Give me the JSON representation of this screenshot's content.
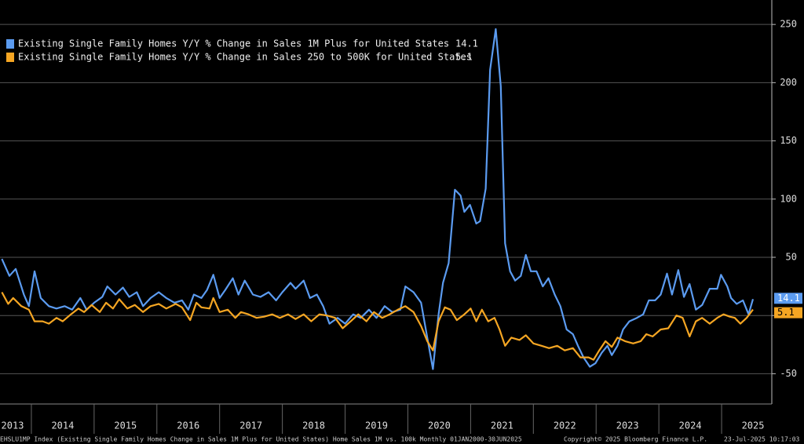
{
  "chart_data": {
    "type": "line",
    "series": [
      {
        "name": "Existing Single Family Homes Y/Y % Change in Sales 1M Plus for United States",
        "last_value_label": "14.1",
        "color": "#5b9bf0",
        "x": [
          2013.53,
          2013.65,
          2013.75,
          2013.88,
          2013.96,
          2014.05,
          2014.15,
          2014.28,
          2014.4,
          2014.53,
          2014.65,
          2014.78,
          2014.88,
          2015.0,
          2015.13,
          2015.21,
          2015.34,
          2015.46,
          2015.56,
          2015.68,
          2015.78,
          2015.9,
          2016.03,
          2016.15,
          2016.28,
          2016.4,
          2016.5,
          2016.59,
          2016.71,
          2016.8,
          2016.9,
          2017.0,
          2017.09,
          2017.21,
          2017.3,
          2017.4,
          2017.53,
          2017.65,
          2017.78,
          2017.9,
          2018.0,
          2018.13,
          2018.21,
          2018.34,
          2018.44,
          2018.55,
          2018.65,
          2018.75,
          2018.88,
          2019.0,
          2019.13,
          2019.25,
          2019.38,
          2019.5,
          2019.63,
          2019.75,
          2019.88,
          2019.96,
          2020.09,
          2020.21,
          2020.31,
          2020.4,
          2020.49,
          2020.56,
          2020.65,
          2020.75,
          2020.84,
          2020.9,
          2020.99,
          2021.09,
          2021.15,
          2021.24,
          2021.31,
          2021.4,
          2021.48,
          2021.55,
          2021.63,
          2021.71,
          2021.8,
          2021.88,
          2021.96,
          2022.05,
          2022.15,
          2022.24,
          2022.34,
          2022.43,
          2022.53,
          2022.63,
          2022.71,
          2022.8,
          2022.9,
          2022.99,
          2023.09,
          2023.18,
          2023.25,
          2023.34,
          2023.43,
          2023.53,
          2023.65,
          2023.75,
          2023.84,
          2023.94,
          2024.03,
          2024.13,
          2024.21,
          2024.31,
          2024.4,
          2024.49,
          2024.59,
          2024.69,
          2024.81,
          2024.93,
          2024.99,
          2025.09,
          2025.15,
          2025.24,
          2025.34,
          2025.43,
          2025.5
        ],
        "values": [
          48.6,
          34,
          40,
          18,
          8,
          38,
          15,
          8,
          6,
          8,
          5,
          15,
          5,
          11,
          16,
          25,
          18,
          24,
          16,
          20,
          8,
          15,
          20,
          15,
          11,
          13,
          5,
          18,
          15,
          22,
          35,
          15,
          22,
          32,
          18,
          30,
          18,
          16,
          20,
          13,
          20,
          28,
          23,
          30,
          15,
          18,
          8,
          -7,
          -2,
          -7,
          1,
          -2,
          5,
          -2,
          8,
          3,
          5,
          25,
          20,
          11,
          -19,
          -46,
          1,
          28,
          45,
          108,
          103,
          89,
          95,
          79,
          81,
          109,
          211,
          246,
          197,
          62,
          38,
          30,
          34,
          52,
          38,
          38,
          25,
          32,
          18,
          8,
          -12,
          -16,
          -26,
          -36,
          -44,
          -41,
          -32,
          -26,
          -34,
          -26,
          -12,
          -5,
          -2,
          1,
          13,
          13,
          18,
          36,
          18,
          39,
          16,
          27,
          5,
          9,
          23,
          23,
          35,
          25,
          15,
          10,
          13,
          1,
          14.1
        ]
      },
      {
        "name": "Existing Single Family Homes Y/Y % Change in Sales 250 to 500K for United States",
        "last_value_label": "5.1",
        "color": "#f5a623",
        "x": [
          2013.53,
          2013.63,
          2013.71,
          2013.84,
          2013.96,
          2014.05,
          2014.18,
          2014.28,
          2014.4,
          2014.5,
          2014.63,
          2014.75,
          2014.84,
          2014.96,
          2015.09,
          2015.19,
          2015.3,
          2015.4,
          2015.53,
          2015.65,
          2015.78,
          2015.9,
          2016.03,
          2016.15,
          2016.3,
          2016.4,
          2016.53,
          2016.63,
          2016.71,
          2016.84,
          2016.9,
          2017.0,
          2017.13,
          2017.25,
          2017.34,
          2017.46,
          2017.59,
          2017.71,
          2017.84,
          2017.96,
          2018.09,
          2018.21,
          2018.34,
          2018.46,
          2018.59,
          2018.71,
          2018.84,
          2018.96,
          2019.09,
          2019.21,
          2019.34,
          2019.46,
          2019.59,
          2019.71,
          2019.84,
          2019.96,
          2020.09,
          2020.21,
          2020.31,
          2020.4,
          2020.49,
          2020.59,
          2020.68,
          2020.78,
          2020.9,
          2021.0,
          2021.09,
          2021.18,
          2021.28,
          2021.38,
          2021.46,
          2021.55,
          2021.65,
          2021.78,
          2021.88,
          2022.0,
          2022.13,
          2022.25,
          2022.38,
          2022.5,
          2022.63,
          2022.75,
          2022.88,
          2022.96,
          2023.05,
          2023.15,
          2023.25,
          2023.34,
          2023.46,
          2023.59,
          2023.71,
          2023.8,
          2023.9,
          2024.03,
          2024.15,
          2024.28,
          2024.38,
          2024.49,
          2024.59,
          2024.69,
          2024.81,
          2024.93,
          2025.03,
          2025.13,
          2025.21,
          2025.3,
          2025.4,
          2025.5
        ],
        "values": [
          20,
          10,
          15,
          8,
          5,
          -5,
          -5,
          -7,
          -2,
          -5,
          1,
          6,
          3,
          9,
          3,
          11,
          6,
          14,
          6,
          9,
          3,
          8,
          10,
          6,
          10,
          7,
          -4,
          11,
          7,
          6,
          15,
          3,
          5,
          -2,
          3,
          1,
          -2,
          -1,
          1,
          -2,
          1,
          -3,
          1,
          -5,
          1,
          0,
          -2,
          -11,
          -5,
          1,
          -5,
          3,
          -2,
          1,
          5,
          8,
          3,
          -9,
          -22,
          -30,
          -5,
          7,
          5,
          -4,
          1,
          6,
          -5,
          5,
          -5,
          -2,
          -12,
          -26,
          -19,
          -21,
          -17,
          -24,
          -26,
          -28,
          -26,
          -30,
          -28,
          -36,
          -36,
          -38,
          -30,
          -22,
          -27,
          -19,
          -22,
          -24,
          -22,
          -16,
          -18,
          -12,
          -11,
          0,
          -2,
          -18,
          -5,
          -2,
          -7,
          -2,
          1,
          -1,
          -2,
          -7,
          -2,
          5.1
        ]
      }
    ],
    "xlim": [
      2013.5,
      2025.8
    ],
    "xticks": [
      2014,
      2015,
      2016,
      2017,
      2018,
      2019,
      2020,
      2021,
      2022,
      2023,
      2024,
      2025
    ],
    "year_labels": [
      {
        "value": 2013,
        "label": "2013"
      },
      {
        "value": 2014,
        "label": "2014"
      },
      {
        "value": 2015,
        "label": "2015"
      },
      {
        "value": 2016,
        "label": "2016"
      },
      {
        "value": 2017,
        "label": "2017"
      },
      {
        "value": 2018,
        "label": "2018"
      },
      {
        "value": 2019,
        "label": "2019"
      },
      {
        "value": 2020,
        "label": "2020"
      },
      {
        "value": 2021,
        "label": "2021"
      },
      {
        "value": 2022,
        "label": "2022"
      },
      {
        "value": 2023,
        "label": "2023"
      },
      {
        "value": 2024,
        "label": "2024"
      },
      {
        "value": 2025,
        "label": "2025"
      }
    ],
    "ylim": [
      -76,
      271
    ],
    "yticks": [
      -50,
      0,
      50,
      100,
      150,
      200,
      250
    ],
    "grid": true,
    "legend": "top-left",
    "footer": {
      "source": "EHSLU1MP Index (Existing Single Family Homes Change in Sales 1M Plus for United States) Home Sales 1M vs. 100k  Monthly 01JAN2000-30JUN2025",
      "copyright": "Copyright© 2025 Bloomberg Finance L.P.",
      "timestamp": "23-Jul-2025 10:17:03"
    }
  }
}
